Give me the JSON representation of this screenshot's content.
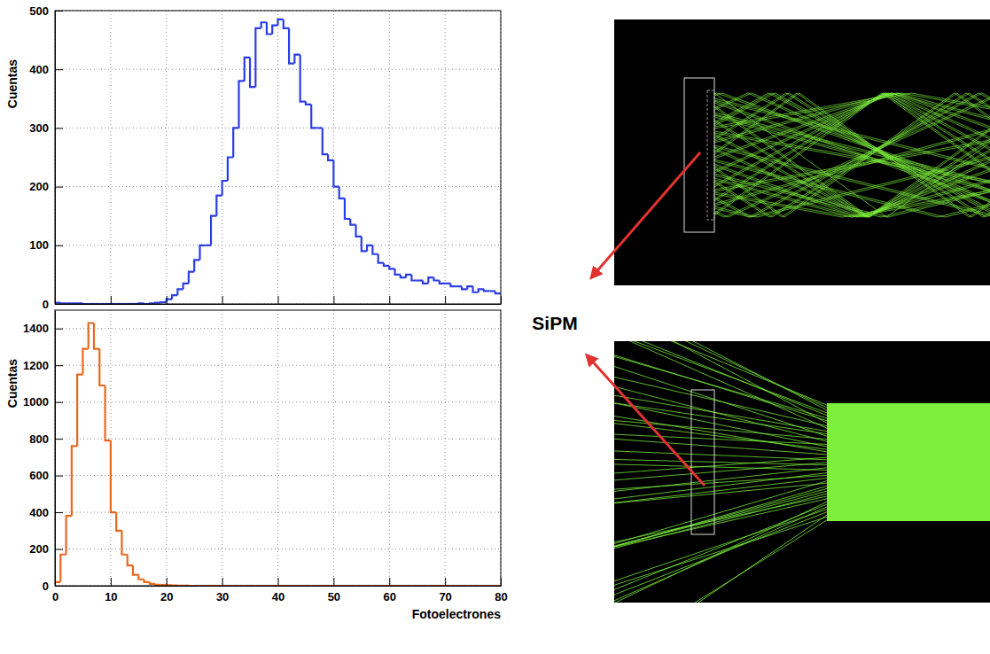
{
  "annotation": "SiPM",
  "chart_data": [
    {
      "type": "histogram",
      "color": "#2b3ee6",
      "y_label": "Cuentas",
      "grid": true,
      "tick_labels": "y",
      "bins": [
        0,
        1,
        2,
        3,
        4,
        5,
        6,
        7,
        8,
        9,
        10,
        11,
        12,
        13,
        14,
        15,
        16,
        17,
        18,
        19,
        20,
        21,
        22,
        23,
        24,
        25,
        26,
        27,
        28,
        29,
        30,
        31,
        32,
        33,
        34,
        35,
        36,
        37,
        38,
        39,
        40,
        41,
        42,
        43,
        44,
        45,
        46,
        47,
        48,
        49,
        50,
        51,
        52,
        53,
        54,
        55,
        56,
        57,
        58,
        59,
        60,
        61,
        62,
        63,
        64,
        65,
        66,
        67,
        68,
        69,
        70,
        71,
        72,
        73,
        74,
        75,
        76,
        77,
        78,
        79,
        80
      ],
      "values": [
        2,
        1,
        1,
        1,
        1,
        0,
        0,
        0,
        0,
        0,
        0,
        0,
        0,
        0,
        0,
        1,
        0,
        1,
        2,
        3,
        8,
        15,
        25,
        35,
        55,
        75,
        100,
        100,
        150,
        185,
        210,
        250,
        300,
        380,
        420,
        370,
        470,
        480,
        460,
        475,
        485,
        470,
        410,
        425,
        345,
        340,
        300,
        300,
        255,
        245,
        200,
        180,
        145,
        135,
        115,
        90,
        100,
        85,
        70,
        65,
        60,
        50,
        45,
        50,
        40,
        40,
        35,
        45,
        40,
        35,
        35,
        30,
        30,
        25,
        30,
        20,
        25,
        22,
        22,
        18
      ],
      "xlim": [
        0,
        80
      ],
      "xticks": [
        0,
        10,
        20,
        30,
        40,
        50,
        60,
        70,
        80
      ],
      "ylim": [
        0,
        500
      ],
      "yticks": [
        0,
        100,
        200,
        300,
        400,
        500
      ]
    },
    {
      "type": "histogram",
      "color": "#e8691e",
      "y_label": "Cuentas",
      "x_label": "Fotoelectrones",
      "grid": true,
      "bins": [
        0,
        1,
        2,
        3,
        4,
        5,
        6,
        7,
        8,
        9,
        10,
        11,
        12,
        13,
        14,
        15,
        16,
        17,
        18,
        19,
        20,
        21,
        22,
        23,
        24,
        25,
        26,
        27,
        28,
        29,
        30,
        31,
        32,
        33,
        34,
        35,
        36,
        37,
        38,
        39,
        40,
        41,
        42,
        43,
        44,
        45,
        46,
        47,
        48,
        49,
        50,
        51,
        52,
        53,
        54,
        55,
        56,
        57,
        58,
        59,
        60,
        61,
        62,
        63,
        64,
        65,
        66,
        67,
        68,
        69,
        70,
        71,
        72,
        73,
        74,
        75,
        76,
        77,
        78,
        79,
        80
      ],
      "values": [
        20,
        170,
        380,
        760,
        1150,
        1290,
        1430,
        1290,
        1090,
        790,
        400,
        300,
        170,
        110,
        60,
        35,
        20,
        10,
        5,
        5,
        3,
        2,
        1,
        1,
        0,
        0,
        0,
        0,
        0,
        0,
        0,
        0,
        0,
        0,
        0,
        0,
        0,
        0,
        0,
        0,
        0,
        0,
        0,
        0,
        0,
        0,
        0,
        0,
        0,
        0,
        0,
        0,
        0,
        0,
        0,
        0,
        0,
        0,
        0,
        0,
        0,
        0,
        0,
        0,
        0,
        0,
        0,
        0,
        0,
        0,
        0,
        0,
        0,
        0,
        0,
        0,
        0,
        0,
        0,
        0
      ],
      "xlim": [
        0,
        80
      ],
      "xticks": [
        0,
        10,
        20,
        30,
        40,
        50,
        60,
        70,
        80
      ],
      "ylim": [
        0,
        1500
      ],
      "yticks": [
        0,
        200,
        400,
        600,
        800,
        1000,
        1200,
        1400
      ]
    }
  ]
}
